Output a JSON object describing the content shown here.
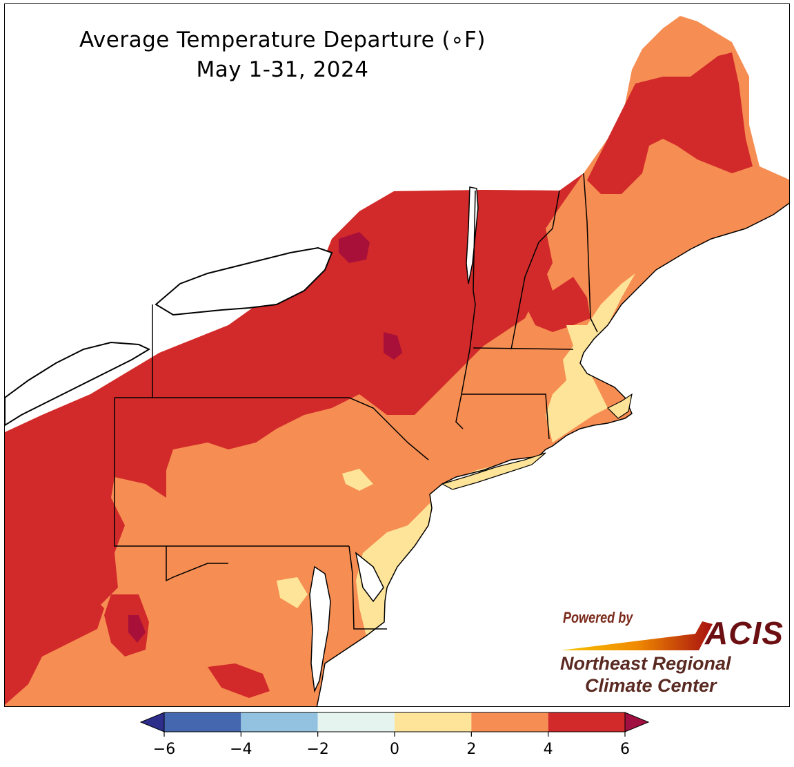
{
  "title": {
    "line1": "Average Temperature Departure (∘F)",
    "line2": "May 1-31, 2024"
  },
  "logo": {
    "powered_by": "Powered by",
    "acis": "ACIS",
    "org_line1": "Northeast Regional",
    "org_line2": "Climate Center"
  },
  "legend": {
    "ticks": [
      "−6",
      "−4",
      "−2",
      "0",
      "2",
      "4",
      "6"
    ],
    "tick_values": [
      -6,
      -4,
      -2,
      0,
      2,
      4,
      6
    ],
    "bins": [
      {
        "from": -6,
        "to": -4,
        "color": "#4467b0"
      },
      {
        "from": -4,
        "to": -2,
        "color": "#92c2df"
      },
      {
        "from": -2,
        "to": 0,
        "color": "#e5f4ef"
      },
      {
        "from": 0,
        "to": 2,
        "color": "#fee499"
      },
      {
        "from": 2,
        "to": 4,
        "color": "#f68d52"
      },
      {
        "from": 4,
        "to": 6,
        "color": "#d22a2a"
      }
    ],
    "under_color": "#2d2e8c",
    "over_color": "#a01040"
  },
  "colors": {
    "water": "#ffffff",
    "anomaly_0_2": "#fee499",
    "anomaly_2_4": "#f68d52",
    "anomaly_4_6": "#d22a2a",
    "anomaly_over_6": "#a8103a",
    "borders": "#000000"
  }
}
